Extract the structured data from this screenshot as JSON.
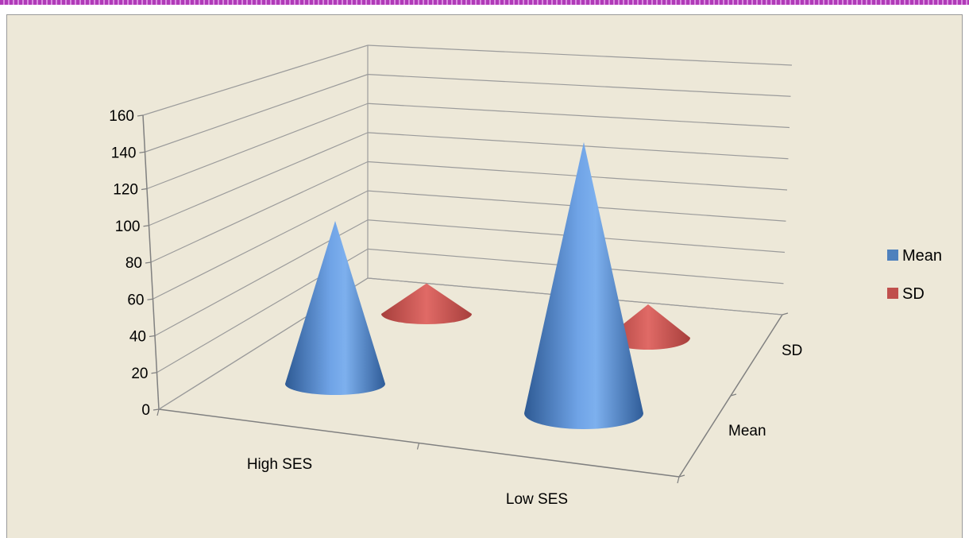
{
  "chart_data": {
    "type": "bar",
    "shape": "cone-3d",
    "categories": [
      "High SES",
      "Low SES"
    ],
    "depth_categories": [
      "Mean",
      "SD"
    ],
    "series": [
      {
        "name": "Mean",
        "values": [
          100,
          141
        ]
      },
      {
        "name": "SD",
        "values": [
          12,
          10
        ]
      }
    ],
    "ylim": [
      0,
      160
    ],
    "yticks": [
      "0",
      "20",
      "40",
      "60",
      "80",
      "100",
      "120",
      "140",
      "160"
    ],
    "grid": true,
    "legend_position": "right",
    "colors": {
      "Mean": "#4f81bd",
      "SD": "#c0504d"
    }
  }
}
